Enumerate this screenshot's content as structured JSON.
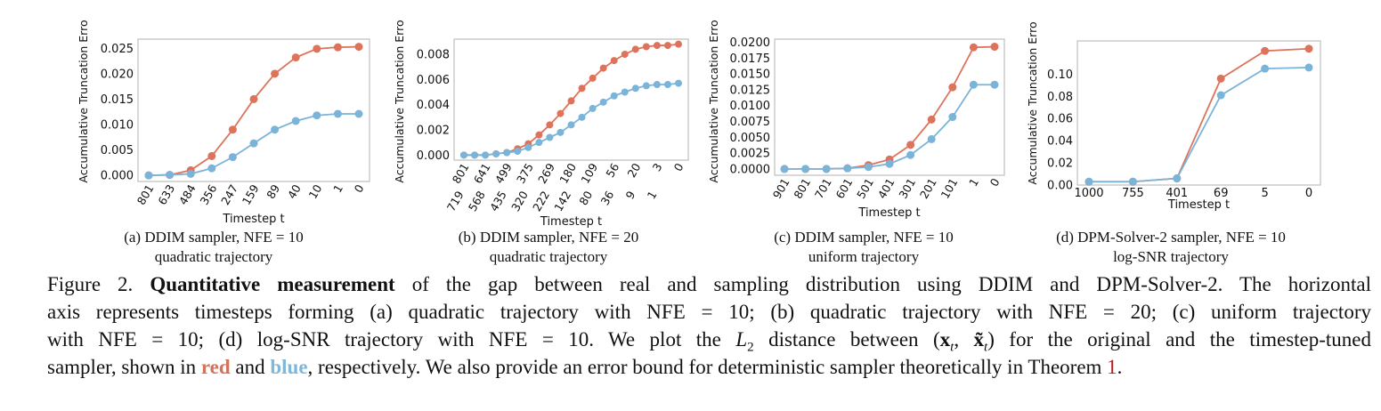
{
  "colors": {
    "original": "#dd735a",
    "tuned": "#7ab4d8"
  },
  "chart_data": [
    {
      "type": "line",
      "ylabel": "Accumulative Truncation Erro",
      "xlabel": "Timestep t",
      "categories": [
        "801",
        "633",
        "484",
        "356",
        "247",
        "159",
        "89",
        "40",
        "10",
        "1",
        "0"
      ],
      "yticks": [
        "0.000",
        "0.005",
        "0.010",
        "0.015",
        "0.020",
        "0.025"
      ],
      "ytick_values": [
        0,
        0.005,
        0.01,
        0.015,
        0.02,
        0.025
      ],
      "ylim": [
        -0.0012,
        0.0268
      ],
      "tick_rotation": 60,
      "grid": false,
      "series": [
        {
          "color": "#dd735a",
          "values": [
            0,
            0.0001,
            0.001,
            0.0038,
            0.009,
            0.015,
            0.02,
            0.0232,
            0.0249,
            0.0252,
            0.0253
          ]
        },
        {
          "color": "#7ab4d8",
          "values": [
            0,
            0.0001,
            0.0003,
            0.0014,
            0.0036,
            0.0063,
            0.009,
            0.0107,
            0.0118,
            0.0121,
            0.0121
          ]
        }
      ],
      "caption": [
        "(a) DDIM sampler, NFE = 10",
        "quadratic trajectory"
      ]
    },
    {
      "type": "line",
      "ylabel": "Accumulative Truncation Erro",
      "xlabel": "Timestep t",
      "categories": [
        "801",
        "719",
        "641",
        "568",
        "499",
        "435",
        "375",
        "320",
        "269",
        "222",
        "180",
        "142",
        "109",
        "80",
        "56",
        "36",
        "20",
        "9",
        "3",
        "1",
        "0"
      ],
      "yticks": [
        "0.000",
        "0.002",
        "0.004",
        "0.006",
        "0.008"
      ],
      "ytick_values": [
        0,
        0.002,
        0.004,
        0.006,
        0.008
      ],
      "ylim": [
        -0.0004,
        0.0092
      ],
      "tick_rotation": 60,
      "grid": false,
      "series": [
        {
          "color": "#dd735a",
          "values": [
            0,
            0,
            0,
            0.0001,
            0.0002,
            0.0005,
            0.0009,
            0.0016,
            0.0024,
            0.0033,
            0.0043,
            0.0053,
            0.0061,
            0.0069,
            0.0075,
            0.008,
            0.0084,
            0.0086,
            0.0087,
            0.0087,
            0.0088
          ]
        },
        {
          "color": "#7ab4d8",
          "values": [
            0,
            0,
            0,
            0.0001,
            0.0002,
            0.0003,
            0.0006,
            0.001,
            0.0014,
            0.0018,
            0.0024,
            0.003,
            0.0037,
            0.0042,
            0.0047,
            0.005,
            0.0053,
            0.0055,
            0.0056,
            0.0056,
            0.0057
          ]
        }
      ],
      "caption": [
        "(b) DDIM sampler, NFE = 20",
        "quadratic trajectory"
      ]
    },
    {
      "type": "line",
      "ylabel": "Accumulative Truncation Erro",
      "xlabel": "Timestep t",
      "categories": [
        "901",
        "801",
        "701",
        "601",
        "501",
        "401",
        "301",
        "201",
        "101",
        "1",
        "0"
      ],
      "yticks": [
        "0.0000",
        "0.0025",
        "0.0050",
        "0.0075",
        "0.0100",
        "0.0125",
        "0.0150",
        "0.0175",
        "0.0200"
      ],
      "ytick_values": [
        0,
        0.0025,
        0.005,
        0.0075,
        0.01,
        0.0125,
        0.015,
        0.0175,
        0.02
      ],
      "ylim": [
        -0.001,
        0.0205
      ],
      "tick_rotation": 60,
      "grid": false,
      "series": [
        {
          "color": "#dd735a",
          "values": [
            0,
            0,
            0,
            0.0001,
            0.0006,
            0.0015,
            0.0038,
            0.0078,
            0.0129,
            0.0192,
            0.0193
          ]
        },
        {
          "color": "#7ab4d8",
          "values": [
            0,
            0,
            0,
            0.0001,
            0.0003,
            0.0008,
            0.0022,
            0.0047,
            0.0082,
            0.0133,
            0.0133
          ]
        }
      ],
      "caption": [
        "(c) DDIM sampler, NFE = 10",
        "uniform trajectory"
      ]
    },
    {
      "type": "line",
      "ylabel": "Accumulative Truncation Erro",
      "xlabel": "Timestep t",
      "categories": [
        "1000",
        "755",
        "401",
        "69",
        "5",
        "0"
      ],
      "yticks": [
        "0.00",
        "0.02",
        "0.04",
        "0.06",
        "0.08",
        "0.10"
      ],
      "ytick_values": [
        0,
        0.02,
        0.04,
        0.06,
        0.08,
        0.1
      ],
      "ylim": [
        0,
        0.13
      ],
      "tick_rotation": 0,
      "grid": false,
      "series": [
        {
          "color": "#dd735a",
          "values": [
            0.003,
            0.003,
            0.006,
            0.096,
            0.121,
            0.123
          ]
        },
        {
          "color": "#7ab4d8",
          "values": [
            0.003,
            0.003,
            0.006,
            0.081,
            0.105,
            0.106
          ]
        }
      ],
      "caption": [
        "(d) DPM-Solver-2 sampler, NFE = 10",
        "log-SNR trajectory"
      ]
    }
  ],
  "caption": {
    "l1": {
      "a": "Figure 2. ",
      "bold": "Quantitative measurement",
      "b": " of the gap between real and sampling distribution using DDIM and DPM-Solver-2. The horizontal"
    },
    "l2": "axis represents timesteps forming (a) quadratic trajectory with NFE = 10; (b) quadratic trajectory with NFE = 20; (c) uniform trajectory",
    "l3": {
      "a": "with NFE = 10; (d) log-SNR trajectory with NFE = 10. We plot the ",
      "L": "L",
      "L_sub": "2",
      "b": " distance between (",
      "x": "x",
      "x_sub": "t",
      "sep": ", ",
      "xt": "x̃",
      "xt_sub": "t",
      "c": ") for the original and the timestep-tuned"
    },
    "l4": {
      "a": "sampler, shown in ",
      "red": "red",
      "b": " and ",
      "blue": "blue",
      "c": ", respectively. We also provide an error bound for deterministic sampler theoretically in Theorem ",
      "ref": "1",
      "d": "."
    }
  }
}
